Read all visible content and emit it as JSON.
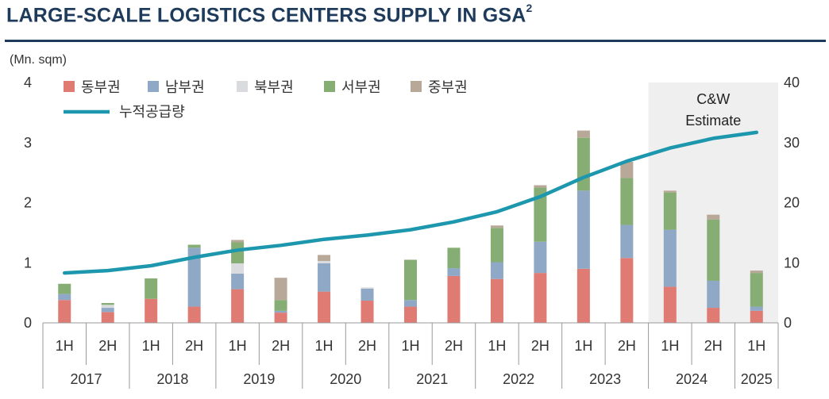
{
  "title": "LARGE-SCALE LOGISTICS CENTERS SUPPLY IN GSA",
  "title_superscript": "2",
  "chart_data": {
    "type": "bar",
    "stacked": true,
    "ylabel": "(Mn. sqm)",
    "ylim": [
      0,
      4
    ],
    "y_ticks": [
      "0",
      "1",
      "2",
      "3",
      "4"
    ],
    "y2lim": [
      0,
      40
    ],
    "y2_ticks": [
      "0",
      "10",
      "20",
      "30",
      "40"
    ],
    "categories": [
      "1H",
      "2H",
      "1H",
      "2H",
      "1H",
      "2H",
      "1H",
      "2H",
      "1H",
      "2H",
      "1H",
      "2H",
      "1H",
      "2H",
      "1H",
      "2H",
      "1H"
    ],
    "years": [
      {
        "label": "2017",
        "span": 2
      },
      {
        "label": "2018",
        "span": 2
      },
      {
        "label": "2019",
        "span": 2
      },
      {
        "label": "2020",
        "span": 2
      },
      {
        "label": "2021",
        "span": 2
      },
      {
        "label": "2022",
        "span": 2
      },
      {
        "label": "2023",
        "span": 2
      },
      {
        "label": "2024",
        "span": 2
      },
      {
        "label": "2025",
        "span": 1
      }
    ],
    "series": [
      {
        "name": "동부권",
        "color": "#e07b73",
        "values": [
          0.38,
          0.18,
          0.4,
          0.27,
          0.56,
          0.17,
          0.52,
          0.37,
          0.27,
          0.78,
          0.73,
          0.83,
          0.9,
          1.08,
          0.6,
          0.25,
          0.2
        ]
      },
      {
        "name": "남부권",
        "color": "#8fa8c6",
        "values": [
          0.1,
          0.07,
          0.0,
          0.98,
          0.26,
          0.03,
          0.47,
          0.2,
          0.11,
          0.13,
          0.28,
          0.52,
          1.3,
          0.55,
          0.95,
          0.45,
          0.07
        ]
      },
      {
        "name": "북부권",
        "color": "#d9dbde",
        "values": [
          0.0,
          0.05,
          0.0,
          0.0,
          0.17,
          0.0,
          0.04,
          0.02,
          0.0,
          0.0,
          0.0,
          0.0,
          0.0,
          0.0,
          0.0,
          0.0,
          0.0
        ]
      },
      {
        "name": "서부권",
        "color": "#86ad74",
        "values": [
          0.17,
          0.03,
          0.34,
          0.05,
          0.35,
          0.18,
          0.0,
          0.0,
          0.67,
          0.34,
          0.57,
          0.9,
          0.88,
          0.78,
          0.62,
          1.02,
          0.56
        ]
      },
      {
        "name": "중부권",
        "color": "#b8a898",
        "values": [
          0.0,
          0.0,
          0.0,
          0.0,
          0.04,
          0.37,
          0.1,
          0.0,
          0.0,
          0.0,
          0.04,
          0.04,
          0.12,
          0.27,
          0.03,
          0.08,
          0.04
        ]
      }
    ],
    "line": {
      "name": "누적공급량",
      "color": "#1d97ad",
      "axis": "right",
      "values": [
        8.3,
        8.7,
        9.5,
        10.9,
        12.1,
        12.9,
        13.9,
        14.6,
        15.5,
        16.8,
        18.5,
        21.0,
        24.2,
        26.9,
        29.1,
        30.7,
        31.7
      ]
    },
    "estimate_label": [
      "C&W",
      "Estimate"
    ],
    "estimate_start_index": 14
  }
}
